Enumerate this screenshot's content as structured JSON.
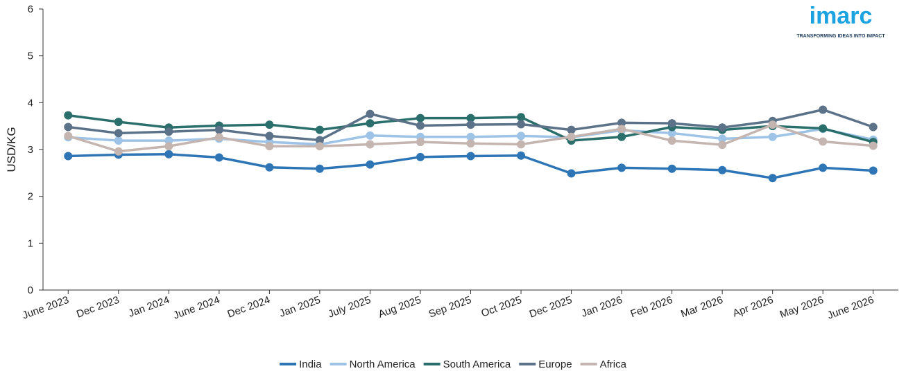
{
  "chart_data": {
    "type": "line",
    "y_label": "USD/KG",
    "categories": [
      "June 2023",
      "Dec 2023",
      "Jan 2024",
      "June 2024",
      "Dec 2024",
      "Jan 2025",
      "July 2025",
      "Aug 2025",
      "Sep 2025",
      "Oct 2025",
      "Dec 2025",
      "Jan 2026",
      "Feb 2026",
      "Mar 2026",
      "Apr 2026",
      "May 2026",
      "June 2026"
    ],
    "series": [
      {
        "name": "India",
        "color": "#2e75b6",
        "values": [
          2.86,
          2.89,
          2.9,
          2.83,
          2.62,
          2.59,
          2.68,
          2.84,
          2.86,
          2.87,
          2.49,
          2.61,
          2.59,
          2.56,
          2.39,
          2.61,
          2.55
        ]
      },
      {
        "name": "North America",
        "color": "#9dc3e6",
        "values": [
          3.26,
          3.19,
          3.19,
          3.23,
          3.16,
          3.11,
          3.3,
          3.27,
          3.27,
          3.29,
          3.26,
          3.41,
          3.35,
          3.23,
          3.27,
          3.44,
          3.21
        ]
      },
      {
        "name": "South America",
        "color": "#2a6f6b",
        "values": [
          3.73,
          3.59,
          3.47,
          3.51,
          3.53,
          3.42,
          3.56,
          3.67,
          3.67,
          3.69,
          3.19,
          3.27,
          3.48,
          3.42,
          3.5,
          3.45,
          3.16
        ]
      },
      {
        "name": "Europe",
        "color": "#5b7289",
        "values": [
          3.48,
          3.35,
          3.38,
          3.42,
          3.29,
          3.2,
          3.76,
          3.51,
          3.53,
          3.54,
          3.42,
          3.57,
          3.56,
          3.47,
          3.61,
          3.85,
          3.48
        ]
      },
      {
        "name": "Africa",
        "color": "#c4b5b0",
        "values": [
          3.29,
          2.96,
          3.07,
          3.26,
          3.07,
          3.07,
          3.11,
          3.16,
          3.13,
          3.11,
          3.27,
          3.44,
          3.19,
          3.1,
          3.53,
          3.17,
          3.08
        ]
      }
    ],
    "ylim": [
      0,
      6
    ],
    "yticks": [
      0,
      1,
      2,
      3,
      4,
      5,
      6
    ],
    "grid": false,
    "legend": "bottom"
  },
  "logo": {
    "name": "imarc",
    "tagline": "TRANSFORMING IDEAS INTO IMPACT"
  }
}
